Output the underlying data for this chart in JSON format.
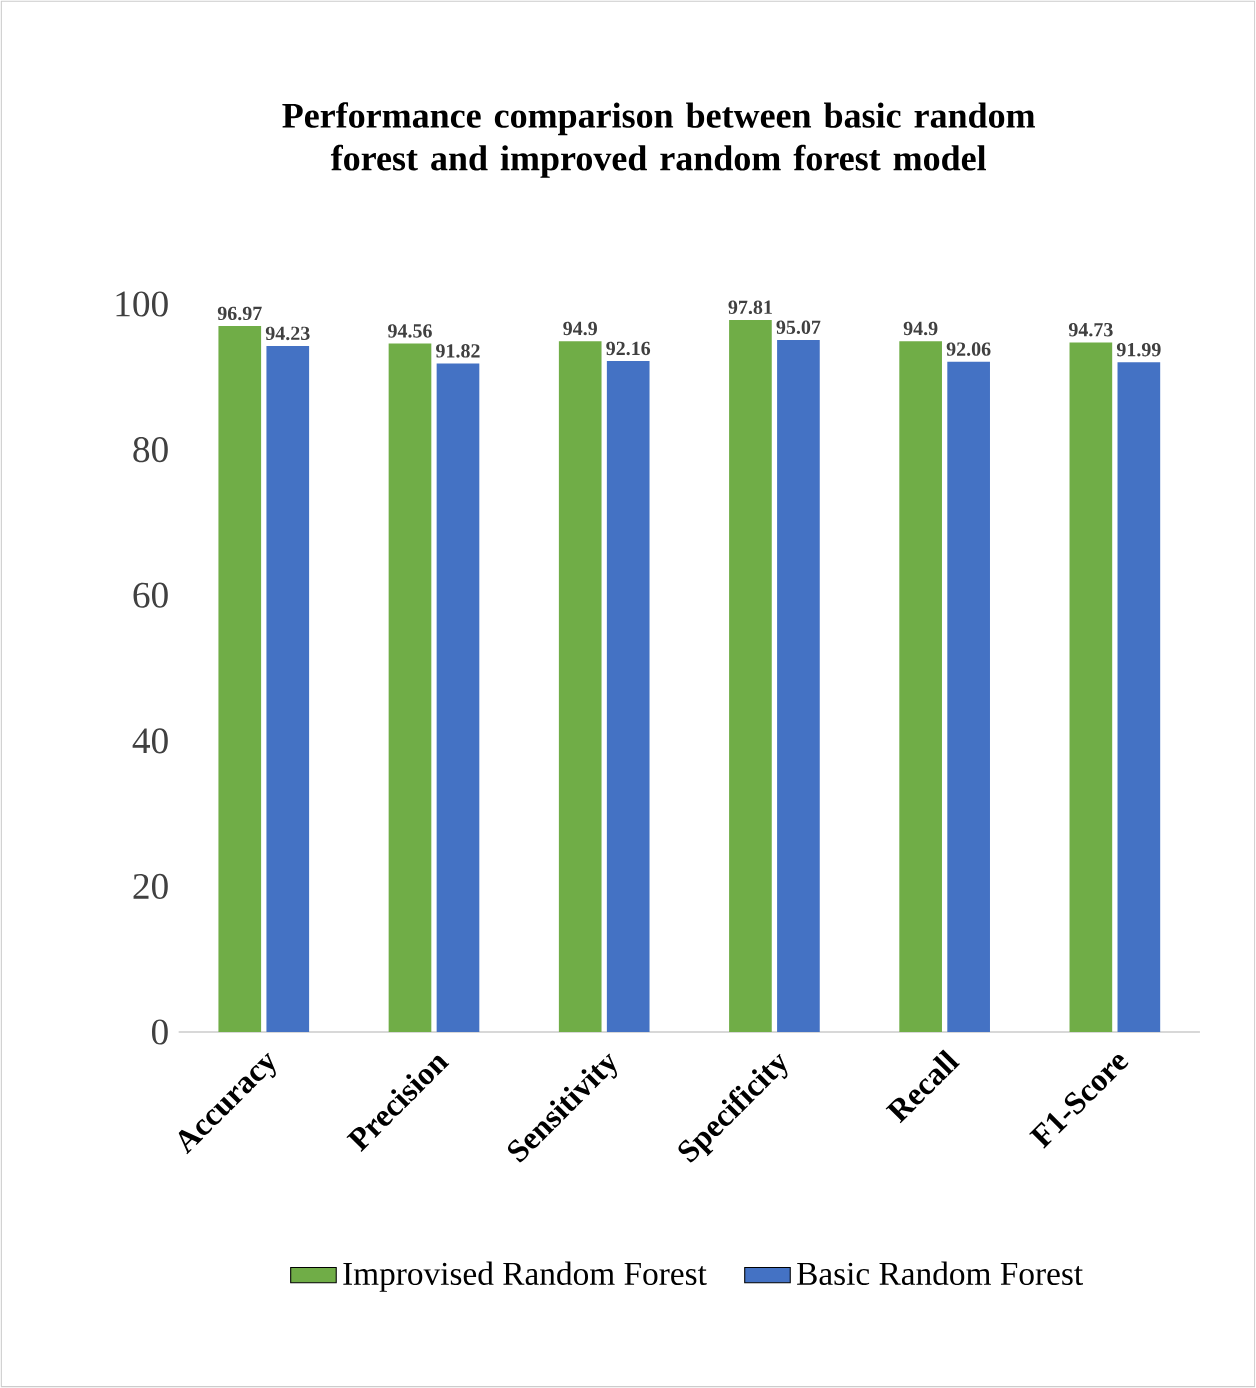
{
  "chart_data": {
    "type": "bar",
    "title": "Performance comparison between basic random forest and improved random forest model",
    "categories": [
      "Accuracy",
      "Precision",
      "Sensitivity",
      "Specificity",
      "Recall",
      "F1-Score"
    ],
    "series": [
      {
        "name": "Improvised Random Forest",
        "color": "#70ad47",
        "values": [
          96.97,
          94.56,
          94.9,
          97.81,
          94.9,
          94.73
        ]
      },
      {
        "name": "Basic Random Forest",
        "color": "#4472c4",
        "values": [
          94.23,
          91.82,
          92.16,
          95.07,
          92.06,
          91.99
        ]
      }
    ],
    "ylim": [
      0,
      100
    ],
    "yticks": [
      0,
      20,
      40,
      60,
      80,
      100
    ],
    "data_labels": true,
    "legend": "bottom"
  }
}
